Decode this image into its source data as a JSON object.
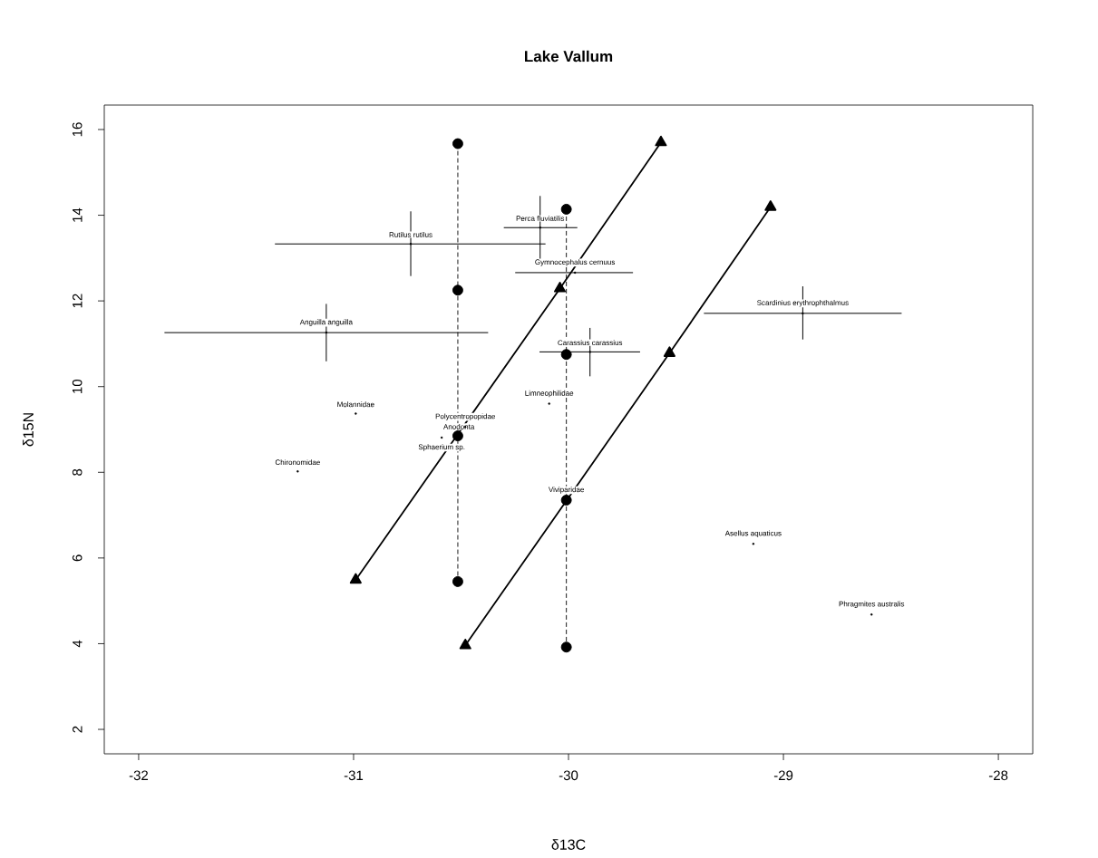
{
  "chart_data": {
    "type": "scatter",
    "title": "Lake Vallum",
    "xlabel": "δ13C",
    "ylabel": "δ15N",
    "xlim": [
      -32.16,
      -27.84
    ],
    "ylim": [
      1.43,
      16.57
    ],
    "xticks": [
      -32,
      -31,
      -30,
      -29,
      -28
    ],
    "yticks": [
      2,
      4,
      6,
      8,
      10,
      12,
      14,
      16
    ],
    "series": [
      {
        "type": "line",
        "color": "#000000",
        "marker": "circle",
        "line_style": "dashed",
        "x": [
          -30.515,
          -30.515,
          -30.515,
          -30.515
        ],
        "values": [
          15.67,
          12.25,
          8.85,
          5.45
        ]
      },
      {
        "type": "line",
        "color": "#000000",
        "marker": "circle",
        "line_style": "dashed",
        "x": [
          -30.01,
          -30.01,
          -30.01,
          -30.01
        ],
        "values": [
          14.14,
          10.75,
          7.35,
          3.92
        ]
      },
      {
        "type": "line",
        "color": "#000000",
        "marker": "triangle",
        "line_style": "solid",
        "x": [
          -30.99,
          -30.04,
          -29.57
        ],
        "values": [
          5.49,
          12.29,
          15.7
        ]
      },
      {
        "type": "line",
        "color": "#000000",
        "marker": "triangle",
        "line_style": "solid",
        "x": [
          -30.48,
          -29.53,
          -29.06
        ],
        "values": [
          3.96,
          10.78,
          14.19
        ]
      },
      {
        "type": "scatter",
        "color": "#000000",
        "marker": "none",
        "x": [
          -30.734,
          -30.132,
          -29.97,
          -31.127,
          -29.9,
          -28.91,
          -30.09,
          -30.99,
          -30.48,
          -30.51,
          -30.59,
          -31.26,
          -29.14,
          -28.59
        ],
        "values": [
          13.33,
          13.71,
          12.66,
          11.26,
          10.81,
          11.71,
          9.6,
          9.37,
          9.06,
          8.85,
          8.81,
          8.02,
          6.33,
          4.68
        ],
        "xerrors": [
          [
            -31.366,
            -30.107
          ],
          [
            -30.301,
            -29.959
          ],
          [
            -30.248,
            -29.7
          ],
          [
            -31.88,
            -30.374
          ],
          [
            -30.135,
            -29.667
          ],
          [
            -29.37,
            -28.45
          ],
          null,
          null,
          null,
          null,
          null,
          null,
          null,
          null
        ],
        "errors": [
          [
            12.58,
            14.09
          ],
          [
            12.95,
            14.45
          ],
          null,
          [
            10.59,
            11.93
          ],
          [
            10.24,
            11.37
          ],
          [
            11.1,
            12.34
          ],
          null,
          null,
          null,
          null,
          null,
          null,
          null,
          null
        ]
      }
    ],
    "annotations": [
      {
        "text": "Rutilus rutilus",
        "x": -30.734,
        "y": 13.33
      },
      {
        "text": "Perca fluviatilis",
        "x": -30.132,
        "y": 13.71
      },
      {
        "text": "Gymnocephalus cernuus",
        "x": -29.97,
        "y": 12.66
      },
      {
        "text": "Anguilla anguilla",
        "x": -31.127,
        "y": 11.26
      },
      {
        "text": "Carassius carassius",
        "x": -29.9,
        "y": 10.81
      },
      {
        "text": "Scardinius erythrophthalmus",
        "x": -28.91,
        "y": 11.71
      },
      {
        "text": "Limneophilidae",
        "x": -30.09,
        "y": 9.6
      },
      {
        "text": "Molannidae",
        "x": -30.99,
        "y": 9.37
      },
      {
        "text": "Polycentropopidae",
        "x": -30.48,
        "y": 9.06
      },
      {
        "text": "Anodonta",
        "x": -30.51,
        "y": 8.85
      },
      {
        "text": "Sphaerium sp.",
        "x": -30.59,
        "y": 8.81
      },
      {
        "text": "Chironomidae",
        "x": -31.26,
        "y": 8.02
      },
      {
        "text": "Viviparidae",
        "x": -30.01,
        "y": 7.35
      },
      {
        "text": "Asellus aquaticus",
        "x": -29.14,
        "y": 6.33
      },
      {
        "text": "Phragmites australis",
        "x": -28.59,
        "y": 4.68
      }
    ]
  }
}
